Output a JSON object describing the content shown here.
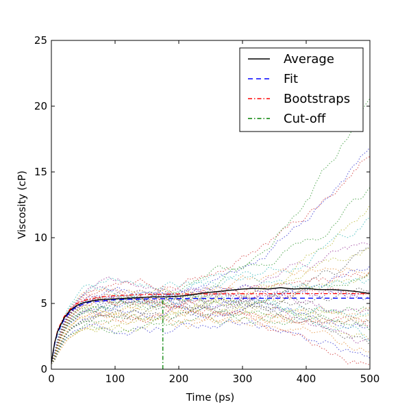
{
  "chart_data": {
    "type": "line",
    "xlabel": "Time (ps)",
    "ylabel": "Viscosity (cP)",
    "xlim": [
      0,
      500
    ],
    "ylim": [
      0,
      25
    ],
    "xticks": [
      0,
      100,
      200,
      300,
      400,
      500
    ],
    "yticks": [
      0,
      5,
      10,
      15,
      20,
      25
    ],
    "grid": false,
    "legend_position": "top-right",
    "legend": [
      {
        "label": "Average",
        "color": "#000000",
        "style": "solid"
      },
      {
        "label": "Fit",
        "color": "#0000ff",
        "style": "dashed"
      },
      {
        "label": "Bootstraps",
        "color": "#ff0000",
        "style": "dashdot"
      },
      {
        "label": "Cut-off",
        "color": "#008000",
        "style": "dashdot"
      }
    ],
    "average": {
      "x": [
        0,
        5,
        10,
        20,
        30,
        40,
        50,
        60,
        70,
        80,
        100,
        120,
        140,
        160,
        180,
        200,
        220,
        240,
        260,
        280,
        300,
        320,
        340,
        360,
        380,
        400,
        420,
        440,
        460,
        480,
        500
      ],
      "y": [
        0.5,
        2.0,
        2.9,
        3.9,
        4.5,
        4.85,
        5.05,
        5.15,
        5.25,
        5.3,
        5.35,
        5.4,
        5.45,
        5.5,
        5.5,
        5.55,
        5.65,
        5.8,
        5.9,
        6.0,
        6.1,
        6.15,
        6.1,
        6.2,
        6.1,
        6.15,
        6.05,
        6.05,
        6.0,
        5.9,
        5.75
      ]
    },
    "fit": {
      "x": [
        0,
        5,
        10,
        20,
        30,
        40,
        50,
        60,
        80,
        100,
        130,
        160,
        200,
        300,
        400,
        500
      ],
      "y": [
        0.5,
        1.9,
        2.8,
        3.8,
        4.4,
        4.75,
        4.95,
        5.1,
        5.2,
        5.28,
        5.33,
        5.36,
        5.38,
        5.39,
        5.4,
        5.4
      ]
    },
    "bootstraps": {
      "x": [
        0,
        5,
        10,
        20,
        30,
        40,
        50,
        60,
        80,
        100,
        130,
        160,
        200,
        300,
        400,
        500
      ],
      "y": [
        0.5,
        2.0,
        3.0,
        4.0,
        4.6,
        5.0,
        5.2,
        5.35,
        5.5,
        5.6,
        5.65,
        5.7,
        5.72,
        5.74,
        5.75,
        5.75
      ]
    },
    "cutoff": {
      "x": 175,
      "y_top": 5.3
    },
    "trajectories": {
      "count": 36,
      "endpoints": [
        17.2,
        16.8,
        13.5,
        12.8,
        11.5,
        10.0,
        8.6,
        8.2,
        7.8,
        7.5,
        7.2,
        7.0,
        6.6,
        6.2,
        5.8,
        5.6,
        5.2,
        5.0,
        4.8,
        4.6,
        4.3,
        4.0,
        3.8,
        3.5,
        3.2,
        3.0,
        2.8,
        2.6,
        2.3,
        2.0,
        1.8,
        1.5,
        1.0,
        0.5,
        21.0,
        9.2
      ],
      "colors": [
        "#1f1fcc",
        "#cc1f1f",
        "#1f8f1f",
        "#b0b01f",
        "#1fb0b0",
        "#8f1f8f",
        "#333333",
        "#e08020"
      ]
    }
  }
}
